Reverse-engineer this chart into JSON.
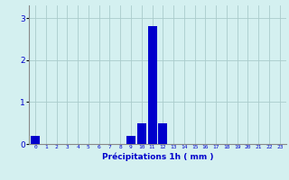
{
  "hours": [
    0,
    1,
    2,
    3,
    4,
    5,
    6,
    7,
    8,
    9,
    10,
    11,
    12,
    13,
    14,
    15,
    16,
    17,
    18,
    19,
    20,
    21,
    22,
    23
  ],
  "values": [
    0.2,
    0,
    0,
    0,
    0,
    0,
    0,
    0,
    0,
    0.2,
    0.5,
    2.8,
    0.5,
    0,
    0,
    0,
    0,
    0,
    0,
    0,
    0,
    0,
    0,
    0
  ],
  "bar_color": "#0000cc",
  "background_color": "#d4f0f0",
  "grid_color": "#aacccc",
  "xlabel": "Précipitations 1h ( mm )",
  "xlabel_color": "#0000cc",
  "tick_color": "#0000cc",
  "ylim": [
    0,
    3.3
  ],
  "yticks": [
    0,
    1,
    2,
    3
  ],
  "bar_width": 0.85
}
